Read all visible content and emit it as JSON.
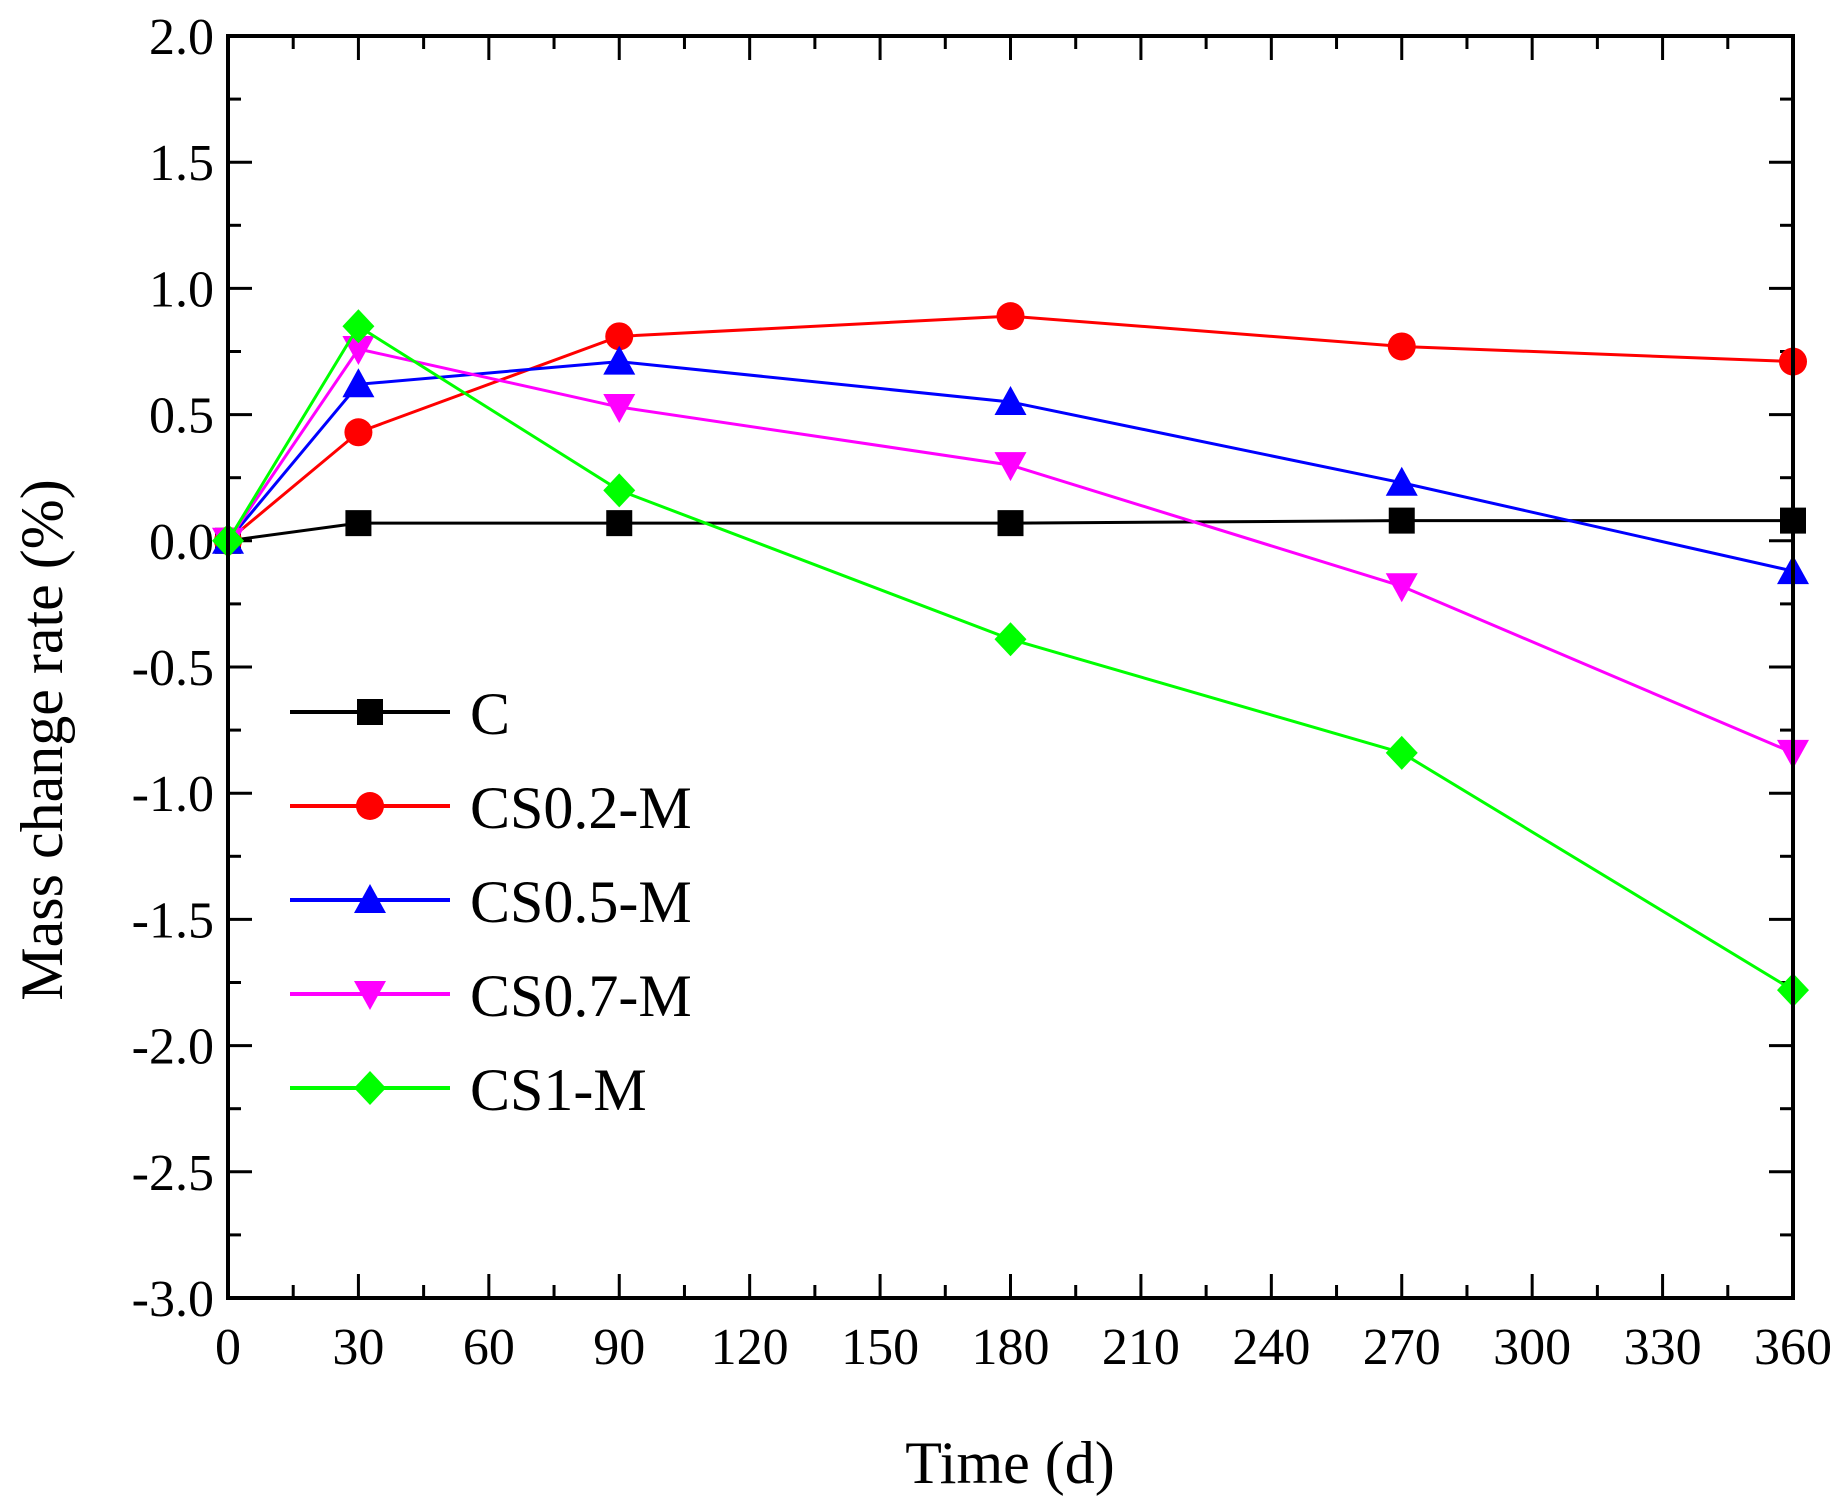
{
  "chart_data": {
    "type": "line",
    "xlabel": "Time (d)",
    "ylabel": "Mass change rate (%)",
    "xlim": [
      0,
      360
    ],
    "ylim": [
      -3.0,
      2.0
    ],
    "x_ticks": [
      "0",
      "30",
      "60",
      "90",
      "120",
      "150",
      "180",
      "210",
      "240",
      "270",
      "300",
      "330",
      "360"
    ],
    "y_ticks": [
      "-3.0",
      "-2.5",
      "-2.0",
      "-1.5",
      "-1.0",
      "-0.5",
      "0.0",
      "0.5",
      "1.0",
      "1.5",
      "2.0"
    ],
    "grid": false,
    "legend_position": "lower-left",
    "x": [
      0,
      30,
      90,
      180,
      270,
      360
    ],
    "series": [
      {
        "name": "C",
        "color": "#000000",
        "marker": "square",
        "values": [
          0.0,
          0.07,
          0.07,
          0.07,
          0.08,
          0.08
        ]
      },
      {
        "name": "CS0.2-M",
        "color": "#ff0000",
        "marker": "circle",
        "values": [
          0.0,
          0.43,
          0.81,
          0.89,
          0.77,
          0.71
        ]
      },
      {
        "name": "CS0.5-M",
        "color": "#0000ff",
        "marker": "triangle-up",
        "values": [
          0.0,
          0.62,
          0.71,
          0.55,
          0.23,
          -0.12
        ]
      },
      {
        "name": "CS0.7-M",
        "color": "#ff00ff",
        "marker": "triangle-down",
        "values": [
          0.0,
          0.76,
          0.53,
          0.3,
          -0.18,
          -0.84
        ]
      },
      {
        "name": "CS1-M",
        "color": "#00ff00",
        "marker": "diamond",
        "values": [
          0.0,
          0.85,
          0.2,
          -0.39,
          -0.84,
          -1.78
        ]
      }
    ]
  }
}
